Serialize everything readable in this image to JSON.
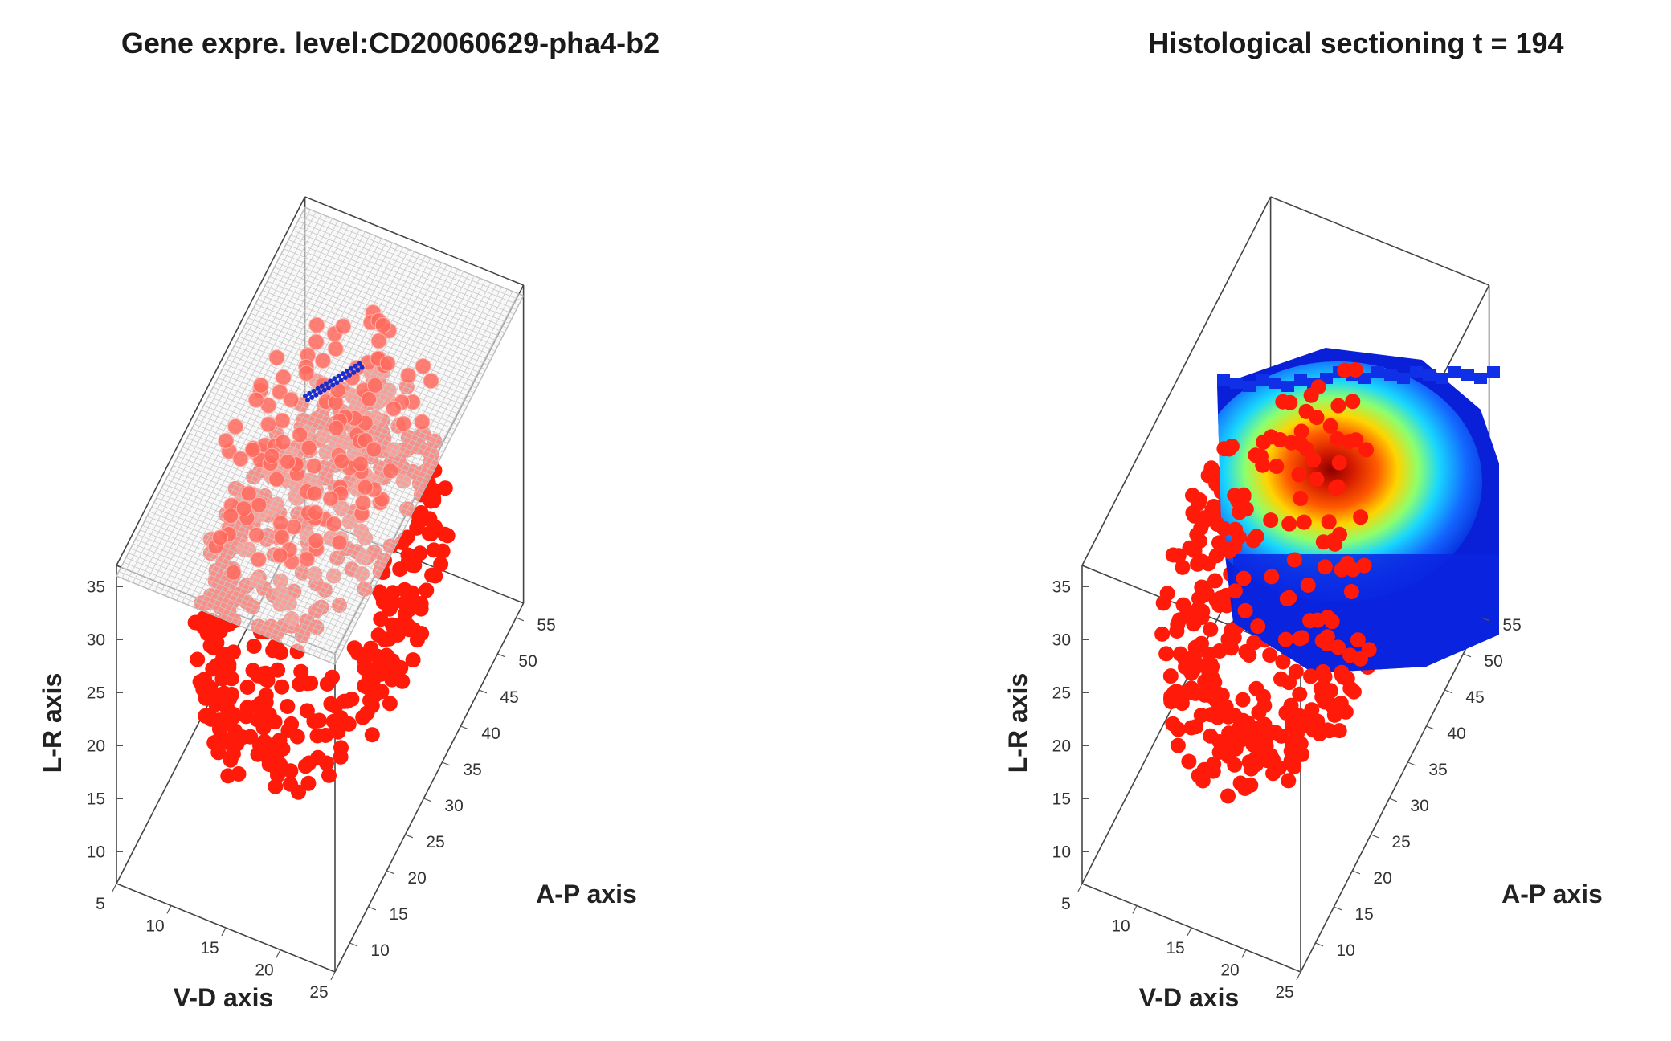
{
  "chart_data": [
    {
      "type": "scatter",
      "title": "Gene expre. level:CD20060629-pha4-b2",
      "xlabel": "V-D axis",
      "ylabel": "A-P axis",
      "zlabel": "L-R axis",
      "x_ticks": [
        "5",
        "10",
        "15",
        "20",
        "25"
      ],
      "y_ticks": [
        "10",
        "15",
        "20",
        "25",
        "30",
        "35",
        "40",
        "45",
        "50",
        "55"
      ],
      "z_ticks": [
        "10",
        "15",
        "20",
        "25",
        "30",
        "35"
      ],
      "xlim": [
        5,
        25
      ],
      "ylim": [
        6,
        57
      ],
      "zlim": [
        7,
        37
      ],
      "section_plane": "L-R = 36 (horizontal grid plane)",
      "colors": {
        "points": "#ff1a0a",
        "highlight": "#1a2ccc",
        "plane": "#bdbdbd"
      },
      "series_points": "approximately 520 nuclei positions filling an ellipsoid",
      "highlight_series": "small blue strip of cells on the section plane"
    },
    {
      "type": "scatter",
      "title": "Histological sectioning t = 194",
      "xlabel": "V-D axis",
      "ylabel": "A-P axis",
      "zlabel": "L-R axis",
      "x_ticks": [
        "5",
        "10",
        "15",
        "20",
        "25"
      ],
      "y_ticks": [
        "10",
        "15",
        "20",
        "25",
        "30",
        "35",
        "40",
        "45",
        "50",
        "55"
      ],
      "z_ticks": [
        "10",
        "15",
        "20",
        "25",
        "30",
        "35"
      ],
      "xlim": [
        5,
        25
      ],
      "ylim": [
        6,
        57
      ],
      "zlim": [
        7,
        37
      ],
      "colormap": "jet",
      "colors": {
        "points": "#ff1a0a"
      },
      "heat_section": "cross-section slab at mid A-P with jet-colored expression intensity"
    }
  ]
}
